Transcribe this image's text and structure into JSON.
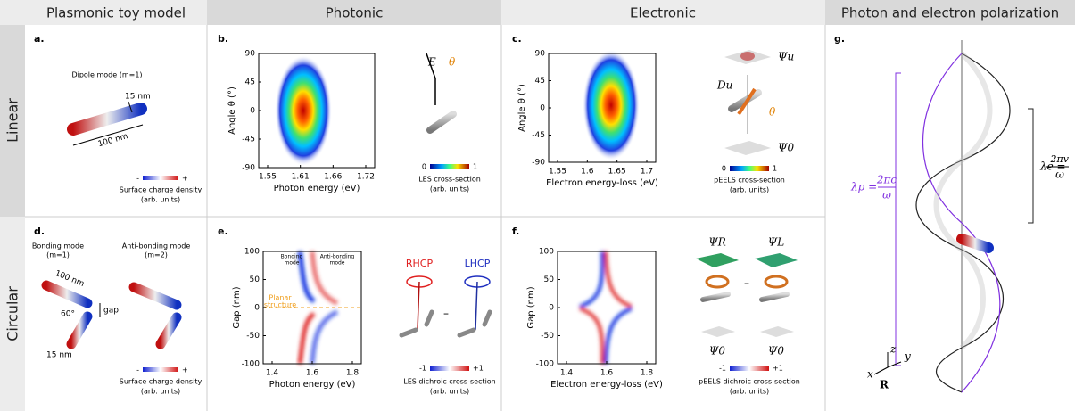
{
  "columns": [
    "Plasmonic toy model",
    "Photonic",
    "Electronic",
    "Photon and electron polarization"
  ],
  "rows": [
    "Linear",
    "Circular"
  ],
  "panels": {
    "a": {
      "label": "a.",
      "mode": "Dipole mode (m=1)",
      "width": "15 nm",
      "length": "100 nm",
      "cb_min": "-",
      "cb_max": "+",
      "caption": [
        "Surface charge density",
        "(arb. units)"
      ]
    },
    "b": {
      "label": "b.",
      "plot": {
        "ylabel": "Angle θ (°)",
        "xlabel": "Photon energy (eV)",
        "yticks": [
          90,
          45,
          0,
          -45,
          -90
        ],
        "xticks": [
          1.55,
          1.61,
          1.66,
          1.72
        ]
      },
      "field": "E",
      "angle": "θ",
      "cb_min": "0",
      "cb_max": "1",
      "caption": [
        "LES cross-section",
        "(arb. units)"
      ]
    },
    "c": {
      "label": "c.",
      "plot": {
        "ylabel": "Angle θ (°)",
        "xlabel": "Electron energy-loss (eV)",
        "yticks": [
          90,
          45,
          0,
          -45,
          -90
        ],
        "xticks": [
          1.55,
          1.6,
          1.65,
          1.7
        ]
      },
      "psi_u": "Ψu",
      "d_u": "Du",
      "angle": "θ",
      "psi_0": "Ψ0",
      "cb_min": "0",
      "cb_max": "1",
      "caption": [
        "pEELS cross-section",
        "(arb. units)"
      ]
    },
    "d": {
      "label": "d.",
      "bonding": [
        "Bonding mode",
        "(m=1)"
      ],
      "antibonding": [
        "Anti-bonding mode",
        "(m=2)"
      ],
      "length": "100 nm",
      "gap": "gap",
      "angle": "60°",
      "width": "15 nm",
      "cb_min": "-",
      "cb_max": "+",
      "caption": [
        "Surface charge density",
        "(arb. units)"
      ]
    },
    "e": {
      "label": "e.",
      "plot": {
        "ylabel": "Gap (nm)",
        "xlabel": "Photon energy (eV)",
        "yticks": [
          100,
          50,
          0,
          -50,
          -100
        ],
        "xticks": [
          1.4,
          1.6,
          1.8
        ]
      },
      "bonding": [
        "Bonding",
        "mode"
      ],
      "antibonding": [
        "Anti-bonding",
        "mode"
      ],
      "planar": [
        "Planar",
        "structure"
      ],
      "rhcp": "RHCP",
      "lhcp": "LHCP",
      "minus": "–",
      "cb_min": "-1",
      "cb_max": "+1",
      "caption": [
        "LES dichroic cross-section",
        "(arb. units)"
      ]
    },
    "f": {
      "label": "f.",
      "plot": {
        "ylabel": "Gap (nm)",
        "xlabel": "Electron energy-loss (eV)",
        "yticks": [
          100,
          50,
          0,
          -50,
          -100
        ],
        "xticks": [
          1.4,
          1.6,
          1.8
        ]
      },
      "psi_r": "ΨR",
      "psi_l": "ΨL",
      "minus": "–",
      "psi_0a": "Ψ0",
      "psi_0b": "Ψ0",
      "cb_min": "-1",
      "cb_max": "+1",
      "caption": [
        "pEELS dichroic cross-section",
        "(arb. units)"
      ]
    },
    "g": {
      "label": "g.",
      "lambda_p": {
        "lhs": "λp =",
        "num": "2πc",
        "den": "ω"
      },
      "lambda_e": {
        "lhs": "λe =",
        "num": "2πv",
        "den": "ω"
      },
      "axes": [
        "z",
        "x",
        "y",
        "R"
      ]
    }
  }
}
